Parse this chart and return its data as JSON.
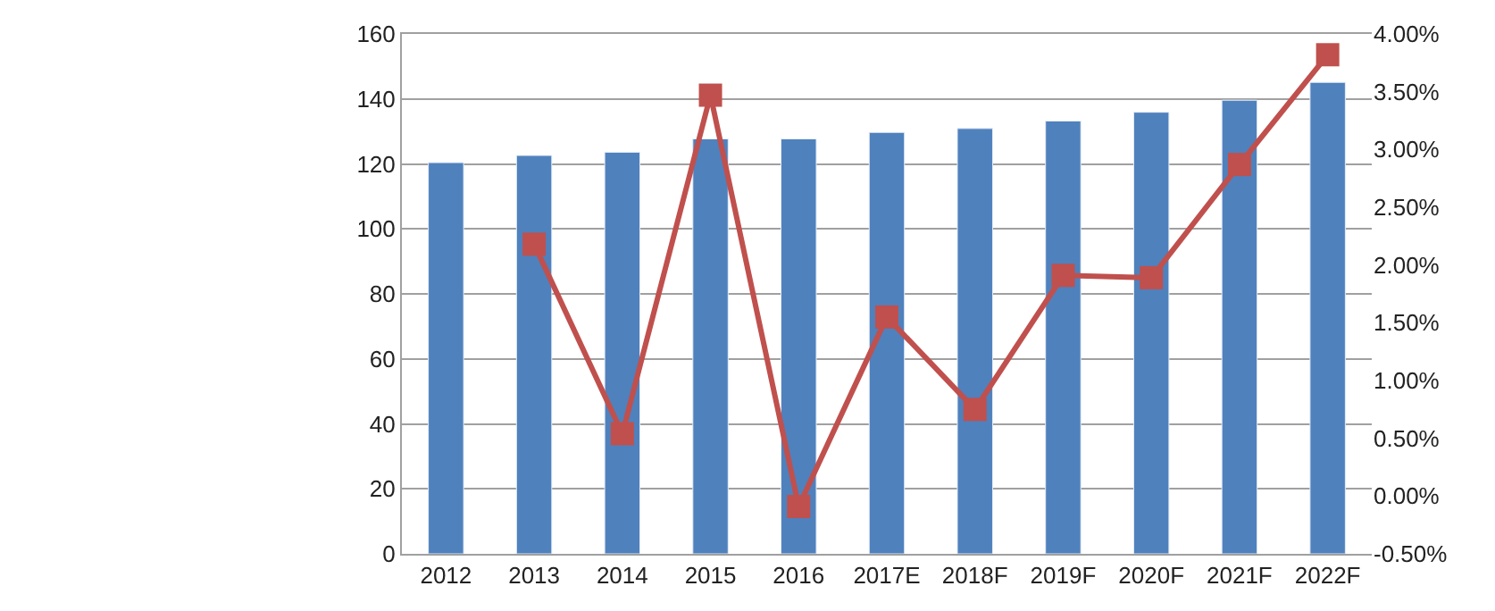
{
  "chart_data": {
    "type": "bar",
    "categories": [
      "2012",
      "2013",
      "2014",
      "2015",
      "2016",
      "2017E",
      "2018F",
      "2019F",
      "2020F",
      "2021F",
      "2022F"
    ],
    "series": [
      {
        "color": "#4f81bd",
        "values": [
          120.4,
          122.6,
          123.6,
          127.7,
          127.7,
          129.7,
          130.9,
          133.2,
          135.9,
          139.6,
          145.1
        ]
      },
      {
        "type": "line",
        "axis": "y2",
        "color": "#c0504d",
        "marker": "square",
        "values": [
          null,
          2.18,
          0.54,
          3.47,
          -0.09,
          1.55,
          0.75,
          1.91,
          1.89,
          2.87,
          3.82
        ]
      }
    ],
    "ylim": [
      0,
      160
    ],
    "yticks": [
      0,
      20,
      40,
      60,
      80,
      100,
      120,
      140,
      160
    ],
    "y2lim": [
      -0.5,
      4.0
    ],
    "y2ticks": [
      {
        "value": -0.5,
        "label": "-0.50%"
      },
      {
        "value": 0,
        "label": "0.00%"
      },
      {
        "value": 0.5,
        "label": "0.50%"
      },
      {
        "value": 1.0,
        "label": "1.00%"
      },
      {
        "value": 1.5,
        "label": "1.50%"
      },
      {
        "value": 2.0,
        "label": "2.00%"
      },
      {
        "value": 2.5,
        "label": "2.50%"
      },
      {
        "value": 3.0,
        "label": "3.00%"
      },
      {
        "value": 3.5,
        "label": "3.50%"
      },
      {
        "value": 4.0,
        "label": "4.00%"
      }
    ],
    "grid": "y"
  }
}
